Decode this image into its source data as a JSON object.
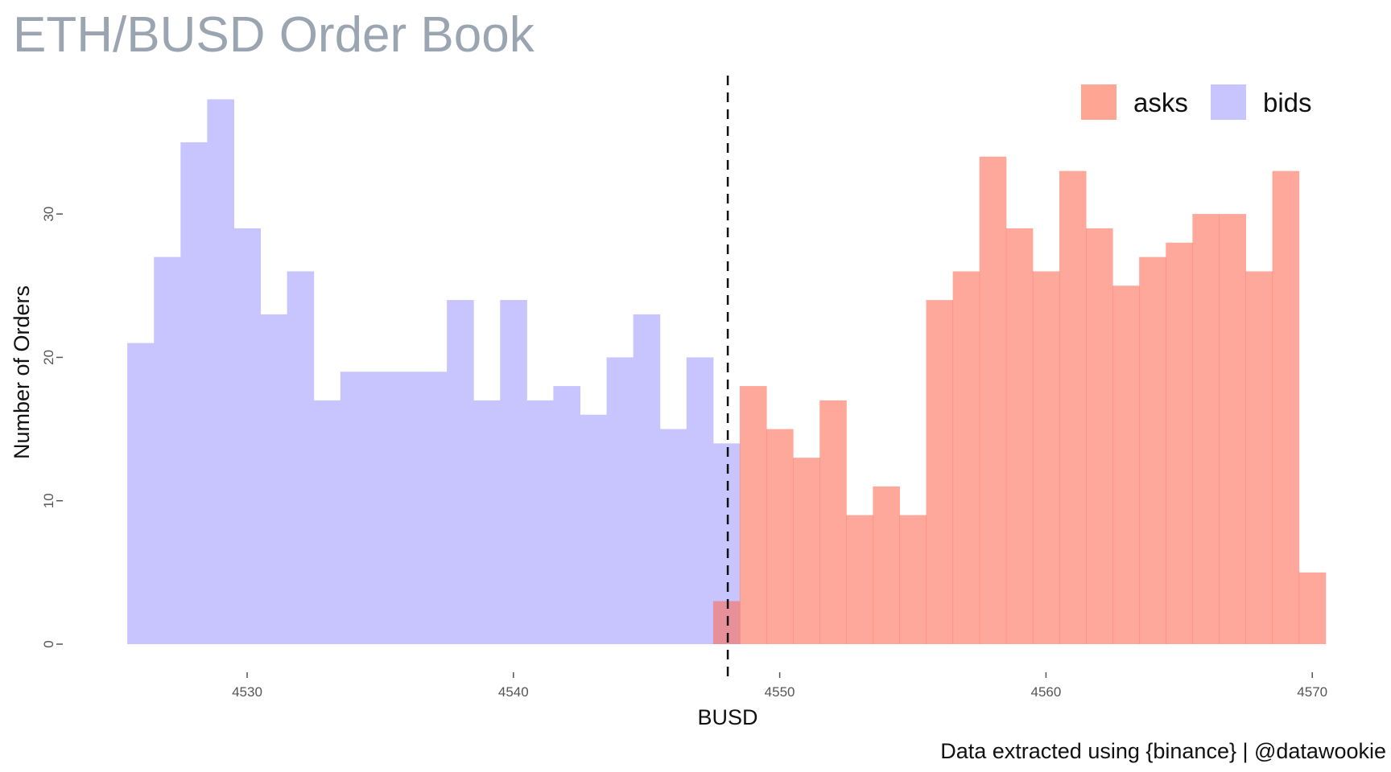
{
  "chart_data": {
    "type": "histogram",
    "title": "ETH/BUSD Order Book",
    "xlabel": "BUSD",
    "ylabel": "Number of Orders",
    "caption": "Data extracted using {binance} | @datawookie",
    "bin_width": 1,
    "xlim": [
      4525,
      4571
    ],
    "ylim": [
      0,
      38
    ],
    "x_ticks": [
      "4530",
      "4540",
      "4550",
      "4560",
      "4570"
    ],
    "y_ticks": [
      "0",
      "10",
      "20",
      "30"
    ],
    "grid": false,
    "legend_position": "top-right",
    "vline_x": 4548,
    "series": [
      {
        "name": "asks",
        "color": "#fea594",
        "bin_centers": [
          4548,
          4549,
          4550,
          4551,
          4552,
          4553,
          4554,
          4555,
          4556,
          4557,
          4558,
          4559,
          4560,
          4561,
          4562,
          4563,
          4564,
          4565,
          4566,
          4567,
          4568,
          4569,
          4570
        ],
        "values": [
          3,
          18,
          15,
          13,
          17,
          9,
          11,
          9,
          24,
          26,
          34,
          29,
          26,
          33,
          29,
          25,
          27,
          28,
          30,
          30,
          26,
          33,
          5
        ]
      },
      {
        "name": "bids",
        "color": "#c8c4fd",
        "bin_centers": [
          4526,
          4527,
          4528,
          4529,
          4530,
          4531,
          4532,
          4533,
          4534,
          4535,
          4536,
          4537,
          4538,
          4539,
          4540,
          4541,
          4542,
          4543,
          4544,
          4545,
          4546,
          4547,
          4548
        ],
        "values": [
          21,
          27,
          35,
          38,
          29,
          23,
          26,
          17,
          19,
          19,
          19,
          19,
          24,
          17,
          24,
          17,
          18,
          16,
          20,
          23,
          15,
          20,
          14
        ]
      }
    ]
  }
}
